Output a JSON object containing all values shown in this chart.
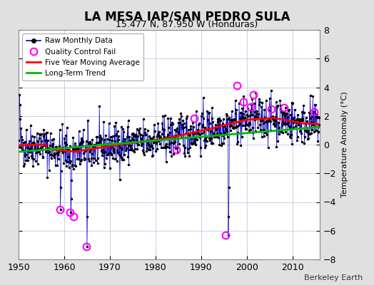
{
  "title": "LA MESA IAP/SAN PEDRO SULA",
  "subtitle": "15.477 N, 87.950 W (Honduras)",
  "ylabel": "Temperature Anomaly (°C)",
  "credit": "Berkeley Earth",
  "xlim": [
    1950,
    2016
  ],
  "ylim": [
    -8,
    8
  ],
  "yticks": [
    -8,
    -6,
    -4,
    -2,
    0,
    2,
    4,
    6,
    8
  ],
  "xticks": [
    1950,
    1960,
    1970,
    1980,
    1990,
    2000,
    2010
  ],
  "bg_color": "#e0e0e0",
  "plot_bg_color": "#ffffff",
  "raw_line_color": "#0000cc",
  "raw_dot_color": "#000000",
  "qc_fail_color": "#ff00ff",
  "moving_avg_color": "#ff0000",
  "trend_color": "#00bb00",
  "seed": 42
}
